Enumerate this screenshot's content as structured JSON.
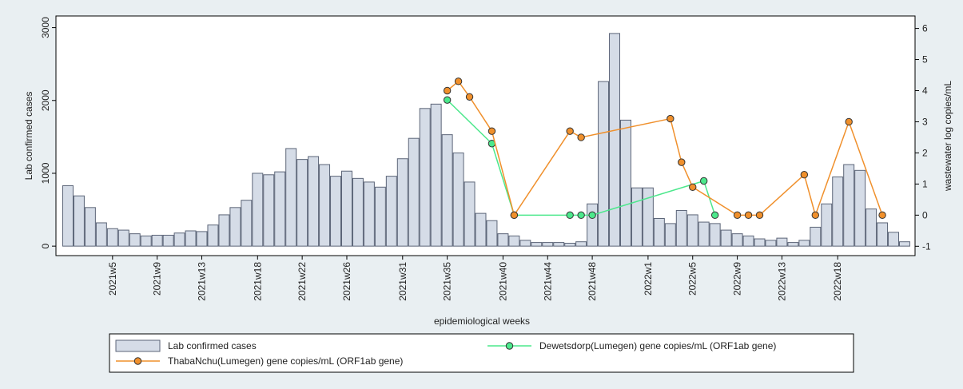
{
  "chart_data": {
    "type": "bar",
    "xlabel": "epidemiological weeks",
    "ylabel": "Lab confirmed cases",
    "y2label": "wastewater log copies/mL",
    "categories": [
      null,
      null,
      null,
      null,
      "2021w5",
      null,
      null,
      null,
      "2021w9",
      null,
      null,
      null,
      "2021w13",
      null,
      null,
      null,
      null,
      "2021w18",
      null,
      null,
      null,
      "2021w22",
      null,
      null,
      null,
      "2021w26",
      null,
      null,
      null,
      null,
      "2021w31",
      null,
      null,
      null,
      "2021w35",
      null,
      null,
      null,
      null,
      "2021w40",
      null,
      null,
      null,
      "2021w44",
      null,
      null,
      null,
      "2021w48",
      null,
      null,
      null,
      null,
      "2022w1",
      null,
      null,
      null,
      "2022w5",
      null,
      null,
      null,
      "2022w9",
      null,
      null,
      null,
      "2022w13",
      null,
      null,
      null,
      null,
      "2022w18",
      null,
      null,
      null,
      null,
      null,
      null
    ],
    "ylim": [
      -130,
      3160
    ],
    "yticks": [
      0,
      1000,
      2000,
      3000
    ],
    "y2lim": [
      -1.3,
      6.4
    ],
    "y2ticks": [
      -1,
      0,
      1,
      2,
      3,
      4,
      5,
      6
    ],
    "connect_gaps": true,
    "series": [
      {
        "name": "Lab confirmed cases",
        "type": "bar",
        "color": "#d5dce7",
        "values": [
          830,
          690,
          530,
          320,
          240,
          220,
          170,
          140,
          150,
          150,
          180,
          210,
          200,
          290,
          430,
          530,
          630,
          1000,
          980,
          1020,
          1340,
          1190,
          1230,
          1120,
          960,
          1030,
          930,
          880,
          810,
          960,
          1200,
          1480,
          1890,
          1950,
          1530,
          1280,
          880,
          450,
          350,
          170,
          140,
          80,
          50,
          50,
          50,
          40,
          60,
          580,
          2260,
          2920,
          1730,
          800,
          800,
          380,
          310,
          490,
          430,
          330,
          310,
          220,
          170,
          140,
          100,
          80,
          110,
          50,
          80,
          260,
          580,
          950,
          1120,
          1040,
          510,
          320,
          190,
          60
        ]
      },
      {
        "name": "Dewetsdorp(Lumegen) gene copies/mL (ORF1ab gene)",
        "type": "line",
        "axis": "y2",
        "color": "#4ce88c",
        "values": [
          null,
          null,
          null,
          null,
          null,
          null,
          null,
          null,
          null,
          null,
          null,
          null,
          null,
          null,
          null,
          null,
          null,
          null,
          null,
          null,
          null,
          null,
          null,
          null,
          null,
          null,
          null,
          null,
          null,
          null,
          null,
          null,
          null,
          null,
          3.7,
          null,
          null,
          null,
          2.3,
          null,
          0,
          null,
          null,
          null,
          null,
          0,
          0,
          0,
          null,
          null,
          null,
          null,
          null,
          null,
          null,
          null,
          null,
          1.1,
          0,
          null,
          null,
          null,
          null,
          null,
          null,
          null,
          null,
          null,
          null,
          null,
          null,
          null,
          null,
          null,
          null,
          null
        ]
      },
      {
        "name": "ThabaNchu(Lumegen) gene copies/mL (ORF1ab gene)",
        "type": "line",
        "axis": "y2",
        "color": "#f0902c",
        "values": [
          null,
          null,
          null,
          null,
          null,
          null,
          null,
          null,
          null,
          null,
          null,
          null,
          null,
          null,
          null,
          null,
          null,
          null,
          null,
          null,
          null,
          null,
          null,
          null,
          null,
          null,
          null,
          null,
          null,
          null,
          null,
          null,
          null,
          null,
          4.0,
          4.3,
          3.8,
          null,
          2.7,
          null,
          0,
          null,
          null,
          null,
          null,
          2.7,
          2.5,
          null,
          null,
          null,
          null,
          null,
          null,
          null,
          3.1,
          1.7,
          0.9,
          null,
          null,
          null,
          0,
          0,
          0,
          null,
          null,
          null,
          1.3,
          0,
          null,
          null,
          3.0,
          null,
          null,
          0,
          null,
          null
        ]
      }
    ]
  }
}
